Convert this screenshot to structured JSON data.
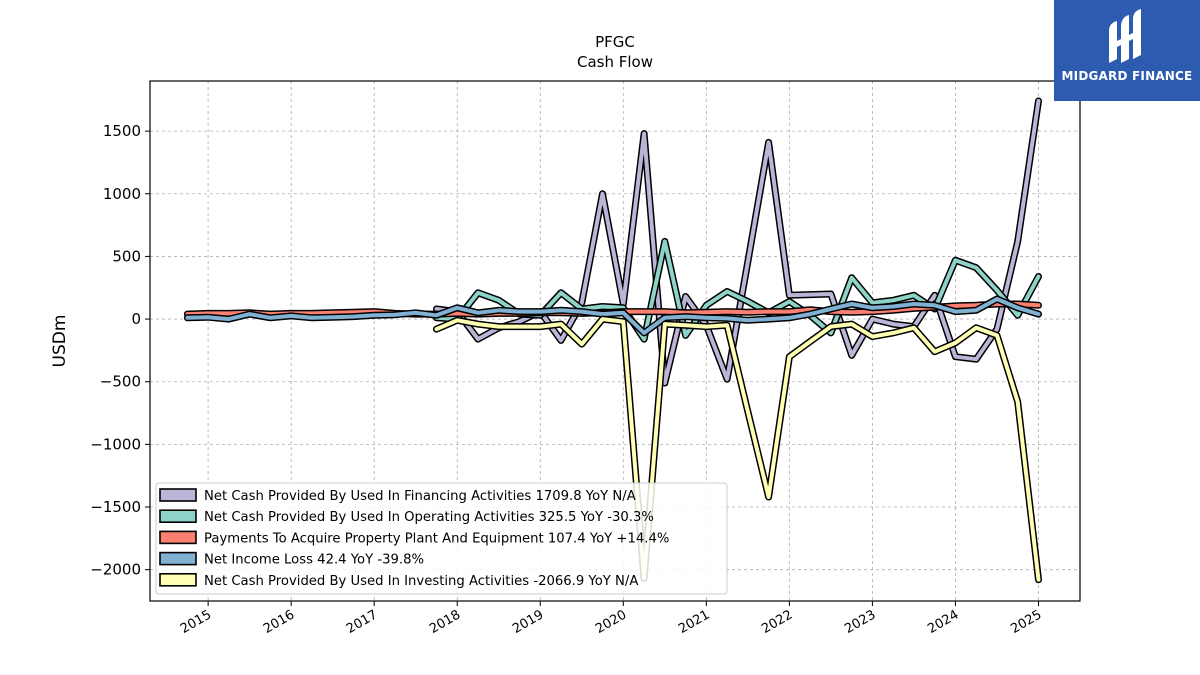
{
  "chart_data": {
    "type": "line",
    "title": "PFGC",
    "subtitle": "Cash Flow",
    "ylabel": "USDm",
    "xlabel": "",
    "ylim": [
      -2250,
      1900
    ],
    "xlim": [
      2014.3,
      2025.5
    ],
    "yticks": [
      -2000,
      -1500,
      -1000,
      -500,
      0,
      500,
      1000,
      1500
    ],
    "ytick_labels": [
      "−2000",
      "−1500",
      "−1000",
      "−500",
      "0",
      "500",
      "1000",
      "1500"
    ],
    "xticks": [
      2015,
      2016,
      2017,
      2018,
      2019,
      2020,
      2021,
      2022,
      2023,
      2024,
      2025
    ],
    "xtick_labels": [
      "2015",
      "2016",
      "2017",
      "2018",
      "2019",
      "2020",
      "2021",
      "2022",
      "2023",
      "2024",
      "2025"
    ],
    "grid": true,
    "legend_position": "lower-left",
    "series": [
      {
        "name": "Net Cash Provided By Used In Financing Activities",
        "legend_label": "Net Cash Provided By Used In Financing Activities  1709.8 YoY N/A",
        "color": "#bcb5d8",
        "x": [
          2017.75,
          2018.0,
          2018.25,
          2018.5,
          2018.75,
          2019.0,
          2019.25,
          2019.5,
          2019.75,
          2020.0,
          2020.25,
          2020.5,
          2020.75,
          2021.0,
          2021.25,
          2021.5,
          2021.75,
          2022.0,
          2022.25,
          2022.5,
          2022.75,
          2023.0,
          2023.25,
          2023.5,
          2023.75,
          2024.0,
          2024.25,
          2024.5,
          2024.75,
          2025.0
        ],
        "y": [
          80,
          60,
          -160,
          -70,
          -20,
          60,
          -170,
          130,
          1000,
          120,
          1480,
          -510,
          180,
          -50,
          -480,
          460,
          1410,
          190,
          195,
          200,
          -290,
          0,
          -40,
          -60,
          190,
          -300,
          -320,
          -80,
          620,
          1740
        ]
      },
      {
        "name": "Net Cash Provided By Used In Operating Activities",
        "legend_label": "Net Cash Provided By Used In Operating Activities  325.5 YoY -30.3%",
        "color": "#8dd3c7",
        "x": [
          2017.75,
          2018.0,
          2018.25,
          2018.5,
          2018.75,
          2019.0,
          2019.25,
          2019.5,
          2019.75,
          2020.0,
          2020.25,
          2020.5,
          2020.75,
          2021.0,
          2021.25,
          2021.5,
          2021.75,
          2022.0,
          2022.25,
          2022.5,
          2022.75,
          2023.0,
          2023.25,
          2023.5,
          2023.75,
          2024.0,
          2024.25,
          2024.5,
          2024.75,
          2025.0
        ],
        "y": [
          10,
          0,
          210,
          150,
          40,
          30,
          210,
          80,
          100,
          90,
          -160,
          620,
          -130,
          110,
          220,
          140,
          50,
          140,
          30,
          -110,
          330,
          130,
          150,
          190,
          80,
          470,
          410,
          230,
          30,
          340
        ]
      },
      {
        "name": "Payments To Acquire Property Plant And Equipment",
        "legend_label": "Payments To Acquire Property Plant And Equipment  107.4 YoY +14.4%",
        "color": "#fb8072",
        "x": [
          2014.75,
          2015.0,
          2015.25,
          2015.5,
          2015.75,
          2016.0,
          2016.25,
          2016.5,
          2016.75,
          2017.0,
          2017.25,
          2017.5,
          2017.75,
          2018.0,
          2018.25,
          2018.5,
          2018.75,
          2019.0,
          2019.25,
          2019.5,
          2019.75,
          2020.0,
          2020.25,
          2020.5,
          2020.75,
          2021.0,
          2021.25,
          2021.5,
          2021.75,
          2022.0,
          2022.25,
          2022.5,
          2022.75,
          2023.0,
          2023.25,
          2023.5,
          2023.75,
          2024.0,
          2024.25,
          2024.5,
          2024.75,
          2025.0
        ],
        "y": [
          40,
          45,
          45,
          50,
          40,
          45,
          45,
          50,
          55,
          60,
          45,
          40,
          40,
          45,
          40,
          45,
          45,
          50,
          50,
          45,
          50,
          60,
          60,
          60,
          50,
          55,
          60,
          55,
          60,
          60,
          75,
          60,
          55,
          60,
          70,
          85,
          95,
          105,
          110,
          120,
          120,
          110
        ]
      },
      {
        "name": "Net Income Loss",
        "legend_label": "Net Income Loss  42.4 YoY -39.8%",
        "color": "#80b1d3",
        "x": [
          2014.75,
          2015.0,
          2015.25,
          2015.5,
          2015.75,
          2016.0,
          2016.25,
          2016.5,
          2016.75,
          2017.0,
          2017.25,
          2017.5,
          2017.75,
          2018.0,
          2018.25,
          2018.5,
          2018.75,
          2019.0,
          2019.25,
          2019.5,
          2019.75,
          2020.0,
          2020.25,
          2020.5,
          2020.75,
          2021.0,
          2021.25,
          2021.5,
          2021.75,
          2022.0,
          2022.25,
          2022.5,
          2022.75,
          2023.0,
          2023.25,
          2023.5,
          2023.75,
          2024.0,
          2024.25,
          2024.5,
          2024.75,
          2025.0
        ],
        "y": [
          10,
          15,
          0,
          40,
          10,
          25,
          10,
          15,
          20,
          30,
          35,
          50,
          30,
          90,
          50,
          70,
          60,
          60,
          70,
          60,
          40,
          50,
          -110,
          10,
          20,
          10,
          5,
          -10,
          0,
          10,
          40,
          80,
          120,
          90,
          100,
          120,
          110,
          60,
          70,
          160,
          90,
          40
        ]
      },
      {
        "name": "Net Cash Provided By Used In Investing Activities",
        "legend_label": "Net Cash Provided By Used In Investing Activities  -2066.9 YoY N/A",
        "color": "#ffffb3",
        "x": [
          2017.75,
          2018.0,
          2018.25,
          2018.5,
          2018.75,
          2019.0,
          2019.25,
          2019.5,
          2019.75,
          2020.0,
          2020.25,
          2020.5,
          2020.75,
          2021.0,
          2021.25,
          2021.5,
          2021.75,
          2022.0,
          2022.25,
          2022.5,
          2022.75,
          2023.0,
          2023.25,
          2023.5,
          2023.75,
          2024.0,
          2024.25,
          2024.5,
          2024.75,
          2025.0
        ],
        "y": [
          -80,
          -10,
          -40,
          -60,
          -60,
          -60,
          -40,
          -200,
          0,
          -20,
          -2070,
          -40,
          -50,
          -60,
          -50,
          -740,
          -1420,
          -300,
          -180,
          -60,
          -40,
          -140,
          -110,
          -70,
          -260,
          -190,
          -70,
          -130,
          -660,
          -2080
        ]
      }
    ]
  },
  "logo": {
    "text": "MIDGARD FINANCE",
    "background": "#2d5bb0"
  }
}
